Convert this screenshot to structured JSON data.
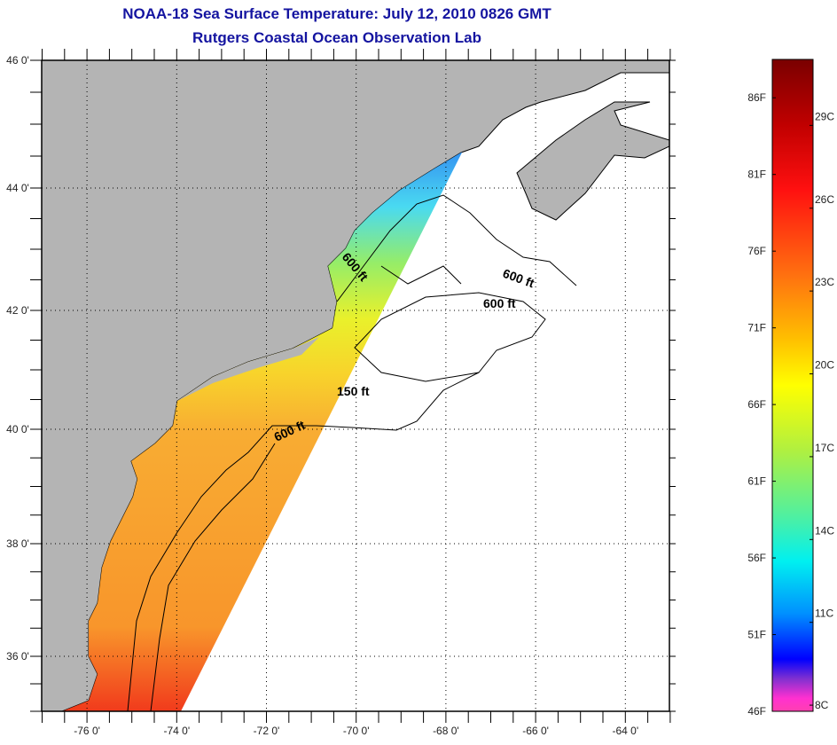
{
  "header": {
    "title": "NOAA-18 Sea Surface Temperature:  July 12, 2010 0826 GMT",
    "subtitle": "Rutgers Coastal Ocean Observation Lab"
  },
  "map": {
    "lon_range": [
      -77,
      -63
    ],
    "lat_range": [
      35,
      46
    ],
    "lon_labels": [
      {
        "lon": -76,
        "text": "-76 0'"
      },
      {
        "lon": -74,
        "text": "-74 0'"
      },
      {
        "lon": -72,
        "text": "-72 0'"
      },
      {
        "lon": -70,
        "text": "-70 0'"
      },
      {
        "lon": -68,
        "text": "-68 0'"
      },
      {
        "lon": -66,
        "text": "-66 0'"
      },
      {
        "lon": -64,
        "text": "-64 0'"
      }
    ],
    "lat_labels": [
      {
        "lat": 46,
        "text": "46 0'"
      },
      {
        "lat": 44,
        "text": "44 0'"
      },
      {
        "lat": 42,
        "text": "42 0'"
      },
      {
        "lat": 40,
        "text": "40 0'"
      },
      {
        "lat": 38,
        "text": "38 0'"
      },
      {
        "lat": 36,
        "text": "36 0'"
      }
    ],
    "contour_labels": [
      "600 ft",
      "600 ft",
      "600 ft",
      "150 ft",
      "600 ft"
    ],
    "colors": {
      "land": "#b4b4b4",
      "ocean": "#ffffff",
      "grid": "#000000"
    }
  },
  "colorbar": {
    "fahrenheit": [
      "86F",
      "81F",
      "76F",
      "71F",
      "66F",
      "61F",
      "56F",
      "51F",
      "46F"
    ],
    "fahrenheit_values": [
      86,
      81,
      76,
      71,
      66,
      61,
      56,
      51,
      46
    ],
    "celsius": [
      "29C",
      "26C",
      "23C",
      "20C",
      "17C",
      "14C",
      "11C",
      "8C"
    ],
    "celsius_values": [
      29,
      26,
      23,
      20,
      17,
      14,
      11,
      8
    ],
    "range_f": [
      46,
      88.5
    ]
  }
}
